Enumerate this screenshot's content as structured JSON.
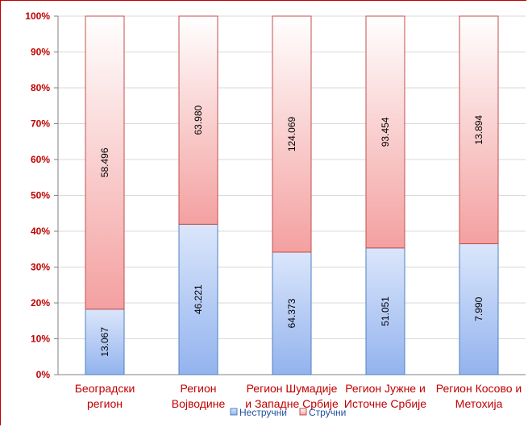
{
  "chart_data": {
    "type": "bar",
    "stacked": true,
    "normalized": true,
    "categories": [
      [
        "Београдски",
        "регион"
      ],
      [
        "Регион",
        "Војводине"
      ],
      [
        "Регион Шумадије",
        "и Западне Србије"
      ],
      [
        "Регион Јужне и",
        "Источне Србије"
      ],
      [
        "Регион Косово и",
        "Метохија"
      ]
    ],
    "series": [
      {
        "name": "Нестручни",
        "values": [
          13067,
          46221,
          64373,
          51051,
          7990
        ],
        "labels": [
          "13.067",
          "46.221",
          "64.373",
          "51.051",
          "7.990"
        ],
        "color_top": "#dbe6fb",
        "color_bottom": "#93b3ee",
        "stroke": "#4f81bd"
      },
      {
        "name": "Стручни",
        "values": [
          58496,
          63980,
          124069,
          93454,
          13894
        ],
        "labels": [
          "58.496",
          "63.980",
          "124.069",
          "93.454",
          "13.894"
        ],
        "color_top": "#ffffff",
        "color_bottom": "#f4a0a0",
        "stroke": "#c0504d"
      }
    ],
    "y_ticks": [
      "0%",
      "10%",
      "20%",
      "30%",
      "40%",
      "50%",
      "60%",
      "70%",
      "80%",
      "90%",
      "100%"
    ],
    "ylim": [
      0,
      100
    ],
    "grid": true,
    "legend_position": "bottom",
    "title": "",
    "xlabel": "",
    "ylabel": ""
  }
}
